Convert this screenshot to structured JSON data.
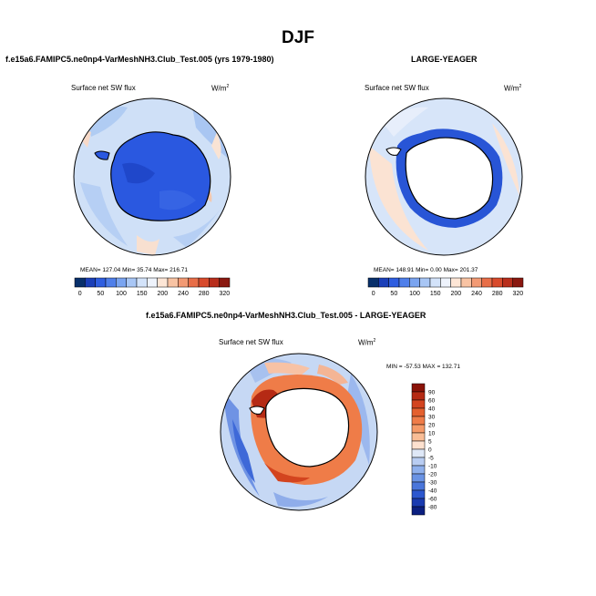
{
  "title": "DJF",
  "panels": {
    "model": {
      "case_title": "f.e15a6.FAMIPC5.ne0np4-VarMeshNH3.Club_Test.005 (yrs 1979-1980)",
      "variable": "Surface net SW flux",
      "units": "W/m",
      "units_sup": "2",
      "stats": "MEAN= 127.04  Min=  35.74  Max= 216.71"
    },
    "obs": {
      "case_title": "LARGE-YEAGER",
      "variable": "Surface net SW flux",
      "units": "W/m",
      "units_sup": "2",
      "stats": "MEAN= 148.91  Min=   0.00  Max= 201.37"
    },
    "diff": {
      "case_title": "f.e15a6.FAMIPC5.ne0np4-VarMeshNH3.Club_Test.005 - LARGE-YEAGER",
      "variable": "Surface net SW flux",
      "units": "W/m",
      "units_sup": "2",
      "minmax": "MIN = -57.53  MAX = 132.71"
    }
  },
  "colorbars": {
    "abs": {
      "labels": [
        "0",
        "50",
        "100",
        "150",
        "200",
        "240",
        "280",
        "320"
      ],
      "colors": [
        "#08306b",
        "#1a3fb8",
        "#2f5ee0",
        "#4f7fea",
        "#7aa4f0",
        "#a8c6f5",
        "#d3e3fa",
        "#eef3fc",
        "#fde6d6",
        "#f8c3a3",
        "#f29a74",
        "#e86e48",
        "#d84a2c",
        "#b82e1c",
        "#8a1810"
      ]
    },
    "diff": {
      "labels": [
        "90",
        "60",
        "40",
        "30",
        "20",
        "10",
        "5",
        "0",
        "-5",
        "-10",
        "-20",
        "-30",
        "-40",
        "-60",
        "-80"
      ],
      "colors": [
        "#8a1308",
        "#b52a14",
        "#d3441f",
        "#e4602e",
        "#ef7c48",
        "#f59a68",
        "#f9bd96",
        "#fde1cf",
        "#dfe8f7",
        "#b9cdf2",
        "#8fb0ec",
        "#6a93e4",
        "#4a76db",
        "#2c57cf",
        "#1a3bb0",
        "#0b1f80"
      ]
    }
  },
  "colors": {
    "land_white": "#ffffff",
    "ocean_light_blue": "#cfe0f7",
    "antarctica_model_blue": "#2a58e0"
  }
}
